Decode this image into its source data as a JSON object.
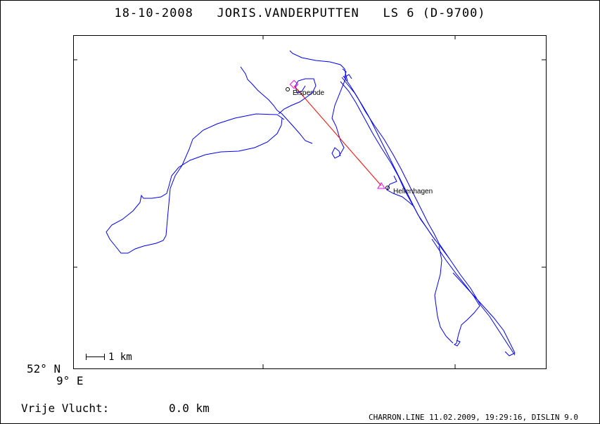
{
  "title": {
    "date": "18-10-2008",
    "pilot": "JORIS.VANDERPUTTEN",
    "glider": "LS 6 (D-9700)"
  },
  "axes": {
    "lat_label": "52° N",
    "lon_label": "9° E"
  },
  "scale": {
    "label": "1 km"
  },
  "free_flight": {
    "label": "Vrije Vlucht:",
    "value": "0.0 km"
  },
  "footer": "CHARRON.LINE 11.02.2009, 19:29:16, DISLIN 9.0",
  "places": [
    {
      "name": "Elsperode"
    },
    {
      "name": "Hellenhagen"
    }
  ],
  "colors": {
    "track": "#0000ff",
    "task_line": "#ff0000",
    "turnpoint": "#ff00ff",
    "frame": "#000000"
  }
}
